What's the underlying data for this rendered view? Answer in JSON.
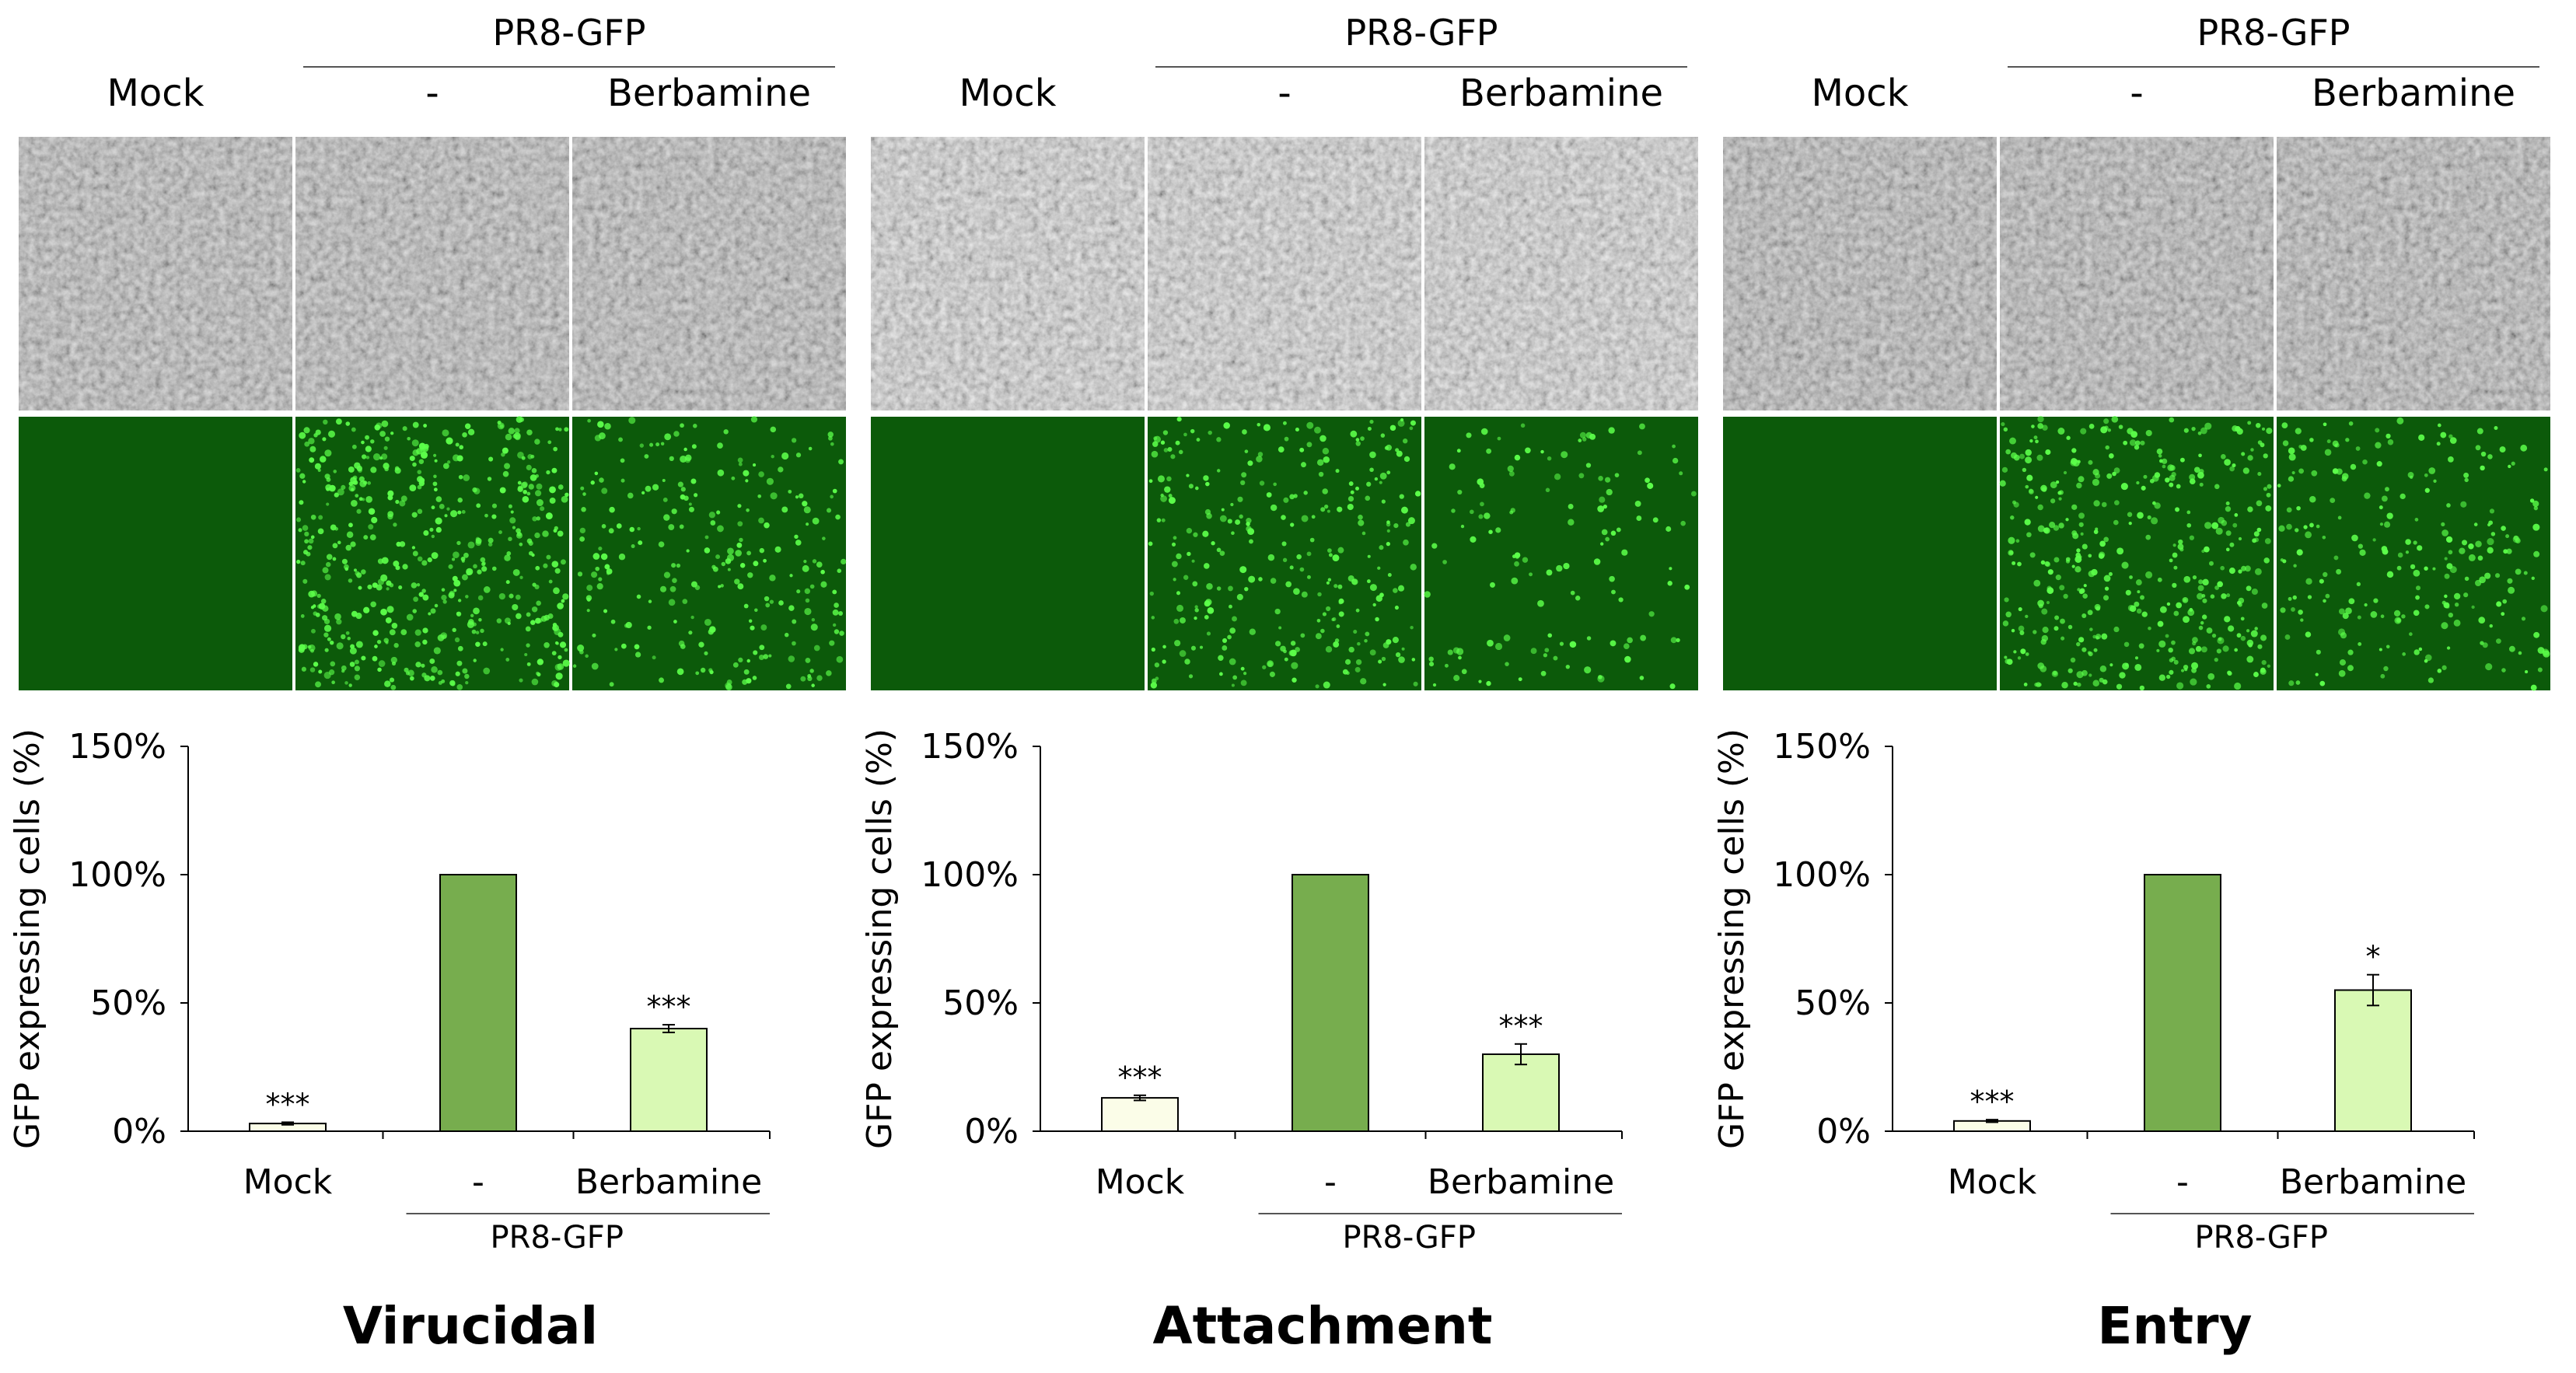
{
  "header": {
    "group_label": "PR8-GFP",
    "columns": [
      "Mock",
      "-",
      "Berbamine"
    ]
  },
  "panels": [
    {
      "title": "Virucidal",
      "images": {
        "brightfield_shade": "#b6b6b6",
        "gfp_dots": [
          0,
          520,
          260
        ]
      }
    },
    {
      "title": "Attachment",
      "images": {
        "brightfield_shade": "#d8d8d8",
        "gfp_dots": [
          0,
          300,
          130
        ]
      }
    },
    {
      "title": "Entry",
      "images": {
        "brightfield_shade": "#b3b3b3",
        "gfp_dots": [
          0,
          420,
          240
        ]
      }
    }
  ],
  "colors": {
    "gfp_background": "#0c5a0a",
    "gfp_dot": "#5cff4a",
    "bar_mock": "#fbfde8",
    "bar_virus": "#77ad4e",
    "bar_berbamine": "#d9f9b4",
    "bar_stroke": "#000000"
  },
  "chart_data": [
    {
      "type": "bar",
      "title": "Virucidal",
      "categories": [
        "Mock",
        "-",
        "Berbamine"
      ],
      "group_label": "PR8-GFP",
      "ylabel": "GFP expressing cells (%)",
      "yticks": [
        "0%",
        "50%",
        "100%",
        "150%"
      ],
      "ylim": [
        0,
        150
      ],
      "values": [
        3,
        100,
        40
      ],
      "errors": [
        0.5,
        0,
        1.5
      ],
      "significance": [
        "***",
        "",
        "***"
      ]
    },
    {
      "type": "bar",
      "title": "Attachment",
      "categories": [
        "Mock",
        "-",
        "Berbamine"
      ],
      "group_label": "PR8-GFP",
      "ylabel": "GFP expressing cells (%)",
      "yticks": [
        "0%",
        "50%",
        "100%",
        "150%"
      ],
      "ylim": [
        0,
        150
      ],
      "values": [
        13,
        100,
        30
      ],
      "errors": [
        1,
        0,
        4
      ],
      "significance": [
        "***",
        "",
        "***"
      ]
    },
    {
      "type": "bar",
      "title": "Entry",
      "categories": [
        "Mock",
        "-",
        "Berbamine"
      ],
      "group_label": "PR8-GFP",
      "ylabel": "GFP expressing cells (%)",
      "yticks": [
        "0%",
        "50%",
        "100%",
        "150%"
      ],
      "ylim": [
        0,
        150
      ],
      "values": [
        4,
        100,
        55
      ],
      "errors": [
        0.5,
        0,
        6
      ],
      "significance": [
        "***",
        "",
        "*"
      ]
    }
  ]
}
